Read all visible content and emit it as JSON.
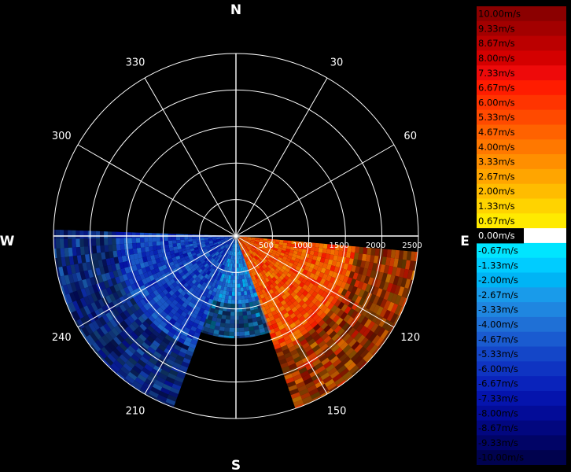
{
  "chart_data": {
    "type": "polar-heatmap",
    "title": "",
    "compass": {
      "north": "N",
      "east": "E",
      "south": "S",
      "west": "W"
    },
    "azimuth_ticks": [
      {
        "deg": 30,
        "label": "30"
      },
      {
        "deg": 60,
        "label": "60"
      },
      {
        "deg": 120,
        "label": "120"
      },
      {
        "deg": 150,
        "label": "150"
      },
      {
        "deg": 210,
        "label": "210"
      },
      {
        "deg": 240,
        "label": "240"
      },
      {
        "deg": 300,
        "label": "300"
      },
      {
        "deg": 330,
        "label": "330"
      }
    ],
    "range_ticks": [
      {
        "value": 500,
        "label": "500"
      },
      {
        "value": 1000,
        "label": "1000"
      },
      {
        "value": 1500,
        "label": "1500"
      },
      {
        "value": 2000,
        "label": "2000"
      },
      {
        "value": 2500,
        "label": "2500"
      }
    ],
    "range_max": 2500,
    "grid": true,
    "data_sector_deg": [
      90,
      270
    ],
    "approx_fields": [
      {
        "az_from": 95,
        "az_to": 160,
        "range_from": 50,
        "range_to": 2500,
        "value": 5.0
      },
      {
        "az_from": 160,
        "az_to": 200,
        "range_from": 50,
        "range_to": 1400,
        "value": -3.5
      },
      {
        "az_from": 200,
        "az_to": 270,
        "range_from": 50,
        "range_to": 2500,
        "value": -5.5
      }
    ],
    "colorbar": {
      "unit": "m/s",
      "entries": [
        {
          "label": "10.00m/s",
          "color": "#8b0000",
          "value": 10.0
        },
        {
          "label": "9.33m/s",
          "color": "#a30000",
          "value": 9.33
        },
        {
          "label": "8.67m/s",
          "color": "#bb0000",
          "value": 8.67
        },
        {
          "label": "8.00m/s",
          "color": "#d40000",
          "value": 8.0
        },
        {
          "label": "7.33m/s",
          "color": "#ee0a0a",
          "value": 7.33
        },
        {
          "label": "6.67m/s",
          "color": "#ff1c00",
          "value": 6.67
        },
        {
          "label": "6.00m/s",
          "color": "#ff3400",
          "value": 6.0
        },
        {
          "label": "5.33m/s",
          "color": "#ff4a00",
          "value": 5.33
        },
        {
          "label": "4.67m/s",
          "color": "#ff6200",
          "value": 4.67
        },
        {
          "label": "4.00m/s",
          "color": "#ff7800",
          "value": 4.0
        },
        {
          "label": "3.33m/s",
          "color": "#ff8f00",
          "value": 3.33
        },
        {
          "label": "2.67m/s",
          "color": "#ffa500",
          "value": 2.67
        },
        {
          "label": "2.00m/s",
          "color": "#ffbc00",
          "value": 2.0
        },
        {
          "label": "1.33m/s",
          "color": "#ffd300",
          "value": 1.33
        },
        {
          "label": "0.67m/s",
          "color": "#ffea00",
          "value": 0.67
        },
        {
          "label": "0.00m/s",
          "color": "#ffffff",
          "value": 0.0
        },
        {
          "label": "-0.67m/s",
          "color": "#00e5ff",
          "value": -0.67
        },
        {
          "label": "-1.33m/s",
          "color": "#00ccff",
          "value": -1.33
        },
        {
          "label": "-2.00m/s",
          "color": "#00b4f5",
          "value": -2.0
        },
        {
          "label": "-2.67m/s",
          "color": "#199bea",
          "value": -2.67
        },
        {
          "label": "-3.33m/s",
          "color": "#1f86e0",
          "value": -3.33
        },
        {
          "label": "-4.00m/s",
          "color": "#1f70d6",
          "value": -4.0
        },
        {
          "label": "-4.67m/s",
          "color": "#1a5bd0",
          "value": -4.67
        },
        {
          "label": "-5.33m/s",
          "color": "#1446c8",
          "value": -5.33
        },
        {
          "label": "-6.00m/s",
          "color": "#0f34c2",
          "value": -6.0
        },
        {
          "label": "-6.67m/s",
          "color": "#0a23bb",
          "value": -6.67
        },
        {
          "label": "-7.33m/s",
          "color": "#0514ad",
          "value": -7.33
        },
        {
          "label": "-8.00m/s",
          "color": "#030c98",
          "value": -8.0
        },
        {
          "label": "-8.67m/s",
          "color": "#02077f",
          "value": -8.67
        },
        {
          "label": "-9.33m/s",
          "color": "#010466",
          "value": -9.33
        },
        {
          "label": "-10.00m/s",
          "color": "#00024e",
          "value": -10.0
        }
      ]
    }
  }
}
